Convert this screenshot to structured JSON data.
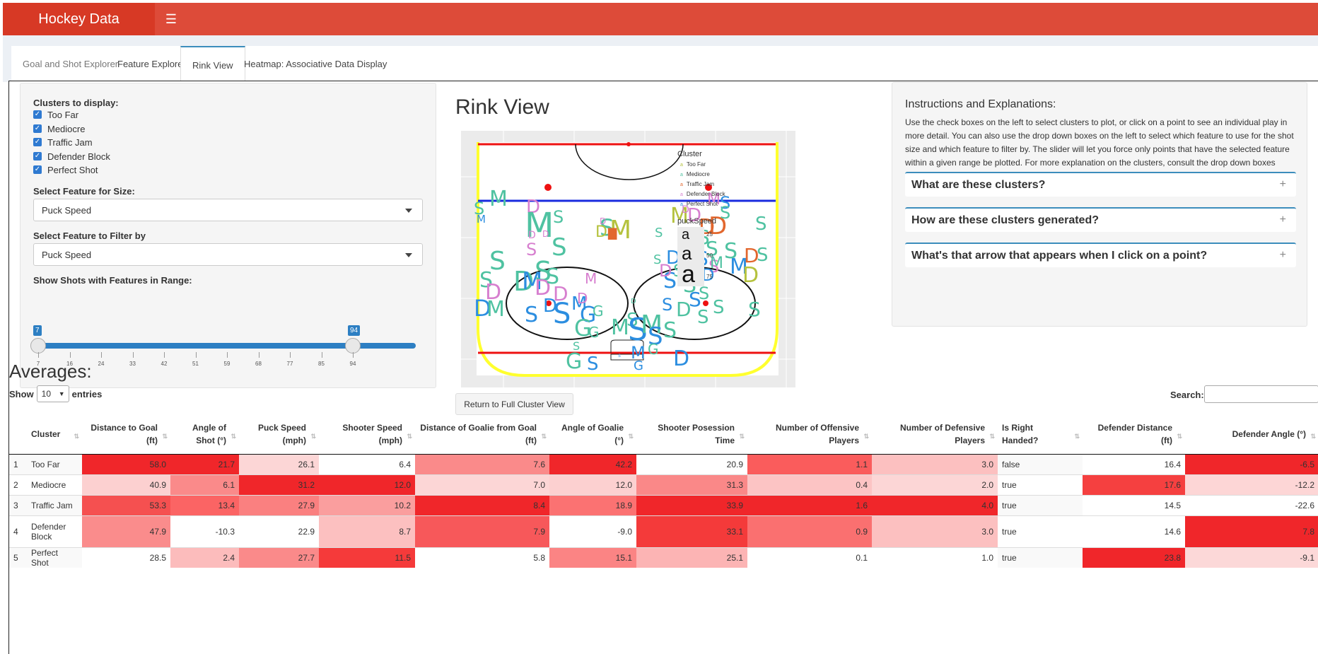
{
  "app": {
    "brand": "Hockey Data"
  },
  "tabs": [
    {
      "label": "Goal and Shot Explorer"
    },
    {
      "label": "Feature Explorer"
    },
    {
      "label": "Rink View"
    },
    {
      "label": "Heatmap: Associative Data Display"
    }
  ],
  "sidebar": {
    "clusters_label": "Clusters to display:",
    "clusters": [
      "Too Far",
      "Mediocre",
      "Traffic Jam",
      "Defender Block",
      "Perfect Shot"
    ],
    "size_label": "Select Feature for Size:",
    "size_value": "Puck Speed",
    "filter_label": "Select Feature to Filter by",
    "filter_value": "Puck Speed",
    "range_label": "Show Shots with Features in Range:",
    "range_min": "7",
    "range_max": "94",
    "range_ticks": [
      "7",
      "16",
      "24",
      "33",
      "42",
      "51",
      "59",
      "68",
      "77",
      "85",
      "94"
    ]
  },
  "rink": {
    "title": "Rink View",
    "legend_title": "Cluster",
    "legend": [
      {
        "label": "Too Far",
        "color": "#b5c23e"
      },
      {
        "label": "Mediocre",
        "color": "#4fc2a1"
      },
      {
        "label": "Traffic Jam",
        "color": "#e2672e"
      },
      {
        "label": "Defender Block",
        "color": "#d77fcf"
      },
      {
        "label": "Perfect Shot",
        "color": "#2c8ee0"
      }
    ],
    "size_title": "puckSpeed",
    "size_legend": [
      {
        "glyph": "a",
        "label": "25"
      },
      {
        "glyph": "a",
        "label": "50"
      },
      {
        "glyph": "a",
        "label": "75"
      }
    ],
    "return_button": "Return to Full Cluster View"
  },
  "instructions": {
    "title": "Instructions and Explanations:",
    "text": "Use the check boxes on the left to select clusters to plot, or click on a point to see an individual play in more detail. You can also use the drop down boxes on the left to select which feature to use for the shot size and which feature to filter by. The slider will let you force only points that have the selected feature within a given range be plotted. For more explanation on the clusters, consult the drop down boxes below.",
    "accordions": [
      "What are these clusters?",
      "How are these clusters generated?",
      "What's that arrow that appears when I click on a point?"
    ]
  },
  "averages": {
    "title": "Averages:",
    "show_label": "Show",
    "show_value": "10",
    "entries_label": "entries",
    "search_label": "Search:",
    "columns": [
      "",
      "Cluster",
      "Distance to Goal (ft)",
      "Angle of Shot (°)",
      "Puck Speed (mph)",
      "Shooter Speed (mph)",
      "Distance of Goalie from Goal (ft)",
      "Angle of Goalie (°)",
      "Shooter Posession Time",
      "Number of Offensive Players",
      "Number of Defensive Players",
      "Is Right Handed?",
      "Defender Distance (ft)",
      "Defender Angle (°)"
    ],
    "rows": [
      [
        "1",
        "Too Far",
        "58.0",
        "21.7",
        "26.1",
        "6.4",
        "7.6",
        "42.2",
        "20.9",
        "1.1",
        "3.0",
        "false",
        "16.4",
        "-6.5"
      ],
      [
        "2",
        "Mediocre",
        "40.9",
        "6.1",
        "31.2",
        "12.0",
        "7.0",
        "12.0",
        "31.3",
        "0.4",
        "2.0",
        "true",
        "17.6",
        "-12.2"
      ],
      [
        "3",
        "Traffic Jam",
        "53.3",
        "13.4",
        "27.9",
        "10.2",
        "8.4",
        "18.9",
        "33.9",
        "1.6",
        "4.0",
        "true",
        "14.5",
        "-22.6"
      ],
      [
        "4",
        "Defender Block",
        "47.9",
        "-10.3",
        "22.9",
        "8.7",
        "7.9",
        "-9.0",
        "33.1",
        "0.9",
        "3.0",
        "true",
        "14.6",
        "7.8"
      ],
      [
        "5",
        "Perfect Shot",
        "28.5",
        "2.4",
        "27.7",
        "11.5",
        "5.8",
        "15.1",
        "25.1",
        "0.1",
        "1.0",
        "true",
        "23.8",
        "-9.1"
      ]
    ],
    "cell_colors": [
      [
        "",
        "",
        "#f0262a",
        "#f0262a",
        "#fcd6d6",
        "#ffffff",
        "#fa8a8a",
        "#f0262a",
        "#ffffff",
        "#fa5c5c",
        "#fcc0c0",
        "",
        "#ffffff",
        "#f0262a"
      ],
      [
        "",
        "",
        "#fcd0d0",
        "#fa8a8a",
        "#f0262a",
        "#f0262a",
        "#fcd6d6",
        "#fcd0d0",
        "#fa8888",
        "#fcc4c4",
        "#fcd6d6",
        "",
        "#f54040",
        "#fdd6d6"
      ],
      [
        "",
        "",
        "#f55050",
        "#fb6464",
        "#fa8080",
        "#fa9e9e",
        "#f0262a",
        "#fb7272",
        "#f0262a",
        "#f0262a",
        "#f0262a",
        "",
        "#ffffff",
        "#ffffff"
      ],
      [
        "",
        "",
        "#fa8c8c",
        "#ffffff",
        "#ffffff",
        "#fcc0c0",
        "#f7585a",
        "#ffffff",
        "#f43a3a",
        "#fa7070",
        "#fcc0c0",
        "",
        "#ffffff",
        "#f0262a"
      ],
      [
        "",
        "",
        "#ffffff",
        "#fcbcbc",
        "#fa8a8a",
        "#f53a3a",
        "#ffffff",
        "#fb8484",
        "#fcb4b4",
        "#ffffff",
        "#ffffff",
        "",
        "#f0262a",
        "#fcd8d8"
      ]
    ]
  }
}
